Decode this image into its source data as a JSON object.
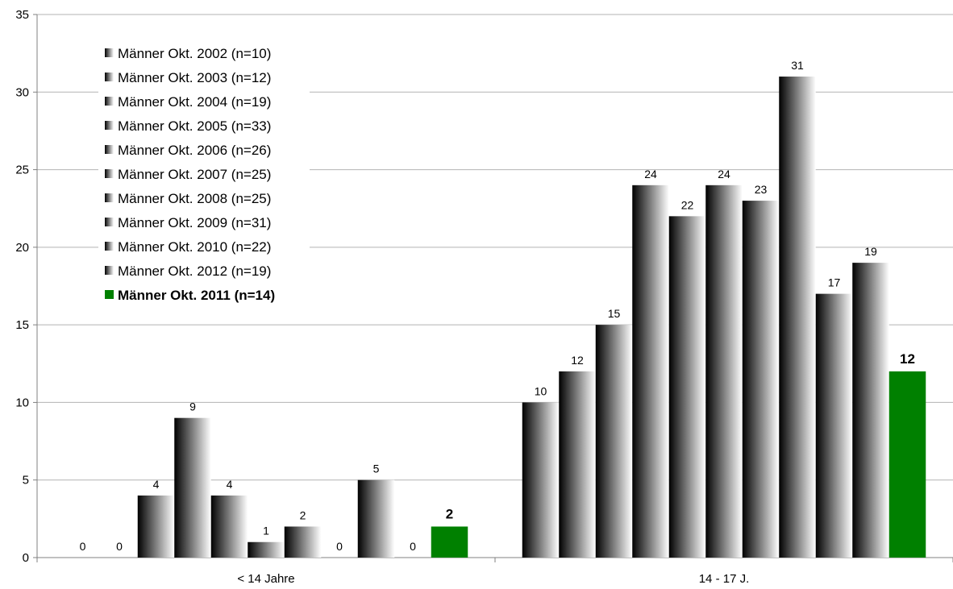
{
  "chart_data": {
    "type": "bar",
    "categories": [
      "< 14 Jahre",
      "14 - 17 J."
    ],
    "ylim": [
      0,
      35
    ],
    "yticks": [
      0,
      5,
      10,
      15,
      20,
      25,
      30,
      35
    ],
    "grid": true,
    "legend_position": "top-left",
    "highlight_color": "#008000",
    "series": [
      {
        "name": "Männer Okt. 2002 (n=10)",
        "values": [
          0,
          10
        ]
      },
      {
        "name": "Männer Okt. 2003 (n=12)",
        "values": [
          0,
          12
        ]
      },
      {
        "name": "Männer Okt. 2004 (n=19)",
        "values": [
          4,
          15
        ]
      },
      {
        "name": "Männer Okt. 2005 (n=33)",
        "values": [
          9,
          24
        ]
      },
      {
        "name": "Männer Okt. 2006 (n=26)",
        "values": [
          4,
          22
        ]
      },
      {
        "name": "Männer Okt. 2007 (n=25)",
        "values": [
          1,
          24
        ]
      },
      {
        "name": "Männer Okt. 2008 (n=25)",
        "values": [
          2,
          23
        ]
      },
      {
        "name": "Männer Okt. 2009 (n=31)",
        "values": [
          0,
          31
        ]
      },
      {
        "name": "Männer Okt. 2010 (n=22)",
        "values": [
          5,
          17
        ]
      },
      {
        "name": "Männer Okt. 2012 (n=19)",
        "values": [
          0,
          19
        ]
      },
      {
        "name": "Männer Okt. 2011 (n=14)",
        "values": [
          2,
          12
        ],
        "highlight": true
      }
    ]
  }
}
